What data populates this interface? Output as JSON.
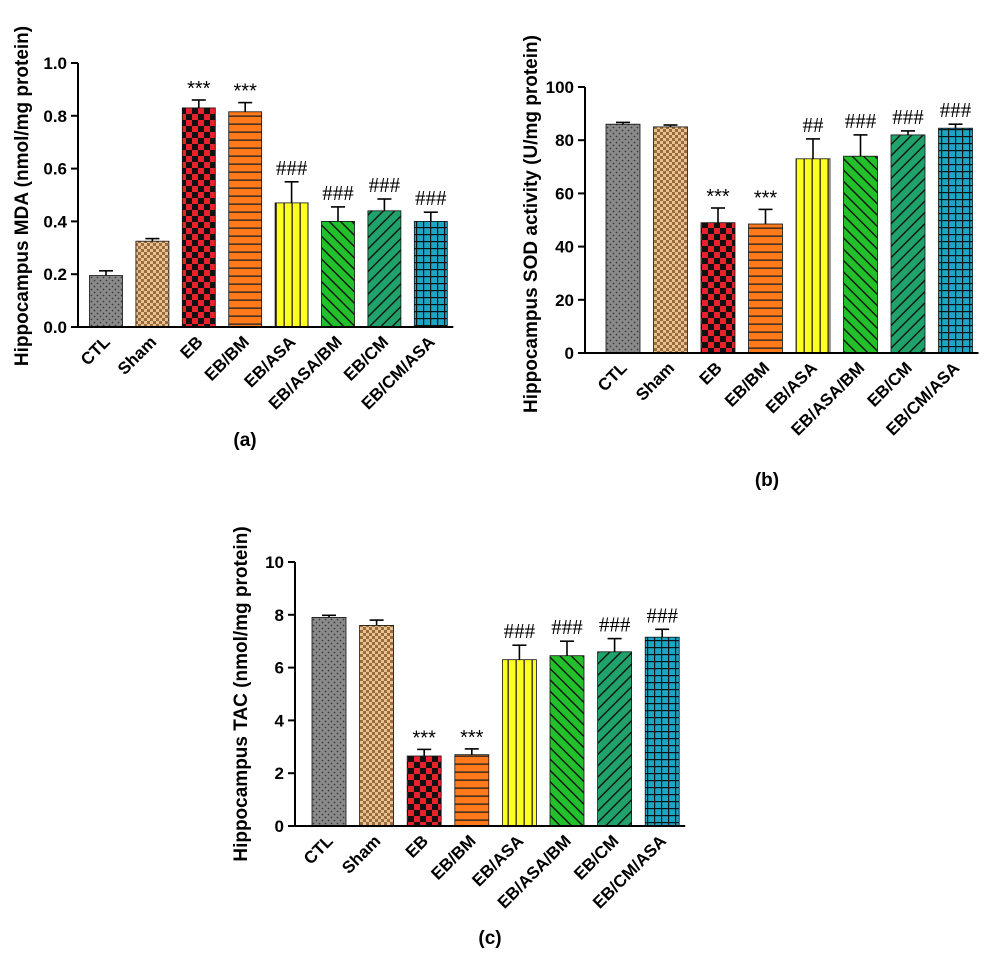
{
  "chart_data": [
    {
      "type": "bar",
      "panel_label": "(a)",
      "ylabel": "Hippocampus MDA (nmol/mg protein)",
      "categories": [
        "CTL",
        "Sham",
        "EB",
        "EB/BM",
        "EB/ASA",
        "EB/ASA/BM",
        "EB/CM",
        "EB/CM/ASA"
      ],
      "values": [
        0.195,
        0.325,
        0.83,
        0.815,
        0.47,
        0.4,
        0.44,
        0.4
      ],
      "errors": [
        0.018,
        0.01,
        0.03,
        0.035,
        0.08,
        0.055,
        0.045,
        0.035
      ],
      "annotations": [
        "",
        "",
        "***",
        "***",
        "###",
        "###",
        "###",
        "###"
      ],
      "yticks": [
        "0.0",
        "0.2",
        "0.4",
        "0.6",
        "0.8",
        "1.0"
      ],
      "ylim": [
        0,
        1.0
      ]
    },
    {
      "type": "bar",
      "panel_label": "(b)",
      "ylabel": "Hippocampus SOD activity (U/mg protein)",
      "categories": [
        "CTL",
        "Sham",
        "EB",
        "EB/BM",
        "EB/ASA",
        "EB/ASA/BM",
        "EB/CM",
        "EB/CM/ASA"
      ],
      "values": [
        86,
        85,
        49,
        48.5,
        73,
        74,
        82,
        84.5
      ],
      "errors": [
        0.7,
        0.7,
        5.5,
        5.5,
        7.5,
        8,
        1.5,
        1.5
      ],
      "annotations": [
        "",
        "",
        "***",
        "***",
        "##",
        "###",
        "###",
        "###"
      ],
      "yticks": [
        "0",
        "20",
        "40",
        "60",
        "80",
        "100"
      ],
      "ylim": [
        0,
        100
      ]
    },
    {
      "type": "bar",
      "panel_label": "(c)",
      "ylabel": "Hippocampus TAC (nmol/mg protein)",
      "categories": [
        "CTL",
        "Sham",
        "EB",
        "EB/BM",
        "EB/ASA",
        "EB/ASA/BM",
        "EB/CM",
        "EB/CM/ASA"
      ],
      "values": [
        7.9,
        7.6,
        2.65,
        2.7,
        6.3,
        6.45,
        6.6,
        7.15
      ],
      "errors": [
        0.08,
        0.2,
        0.25,
        0.22,
        0.55,
        0.55,
        0.5,
        0.3
      ],
      "annotations": [
        "",
        "",
        "***",
        "***",
        "###",
        "###",
        "###",
        "###"
      ],
      "yticks": [
        "0",
        "2",
        "4",
        "6",
        "8",
        "10"
      ],
      "ylim": [
        0,
        10
      ]
    }
  ],
  "bar_styles": [
    {
      "pattern": "dots",
      "fill": "#8a8a8a"
    },
    {
      "pattern": "checker-fine",
      "fill": "#d9a871"
    },
    {
      "pattern": "checker",
      "fill": "#e8212a"
    },
    {
      "pattern": "hlines",
      "fill": "#ff7a1a"
    },
    {
      "pattern": "vlines",
      "fill": "#ffff1f"
    },
    {
      "pattern": "diag-up",
      "fill": "#22c02a"
    },
    {
      "pattern": "diag-down",
      "fill": "#1fa36b"
    },
    {
      "pattern": "grid",
      "fill": "#1ba6c6"
    }
  ]
}
